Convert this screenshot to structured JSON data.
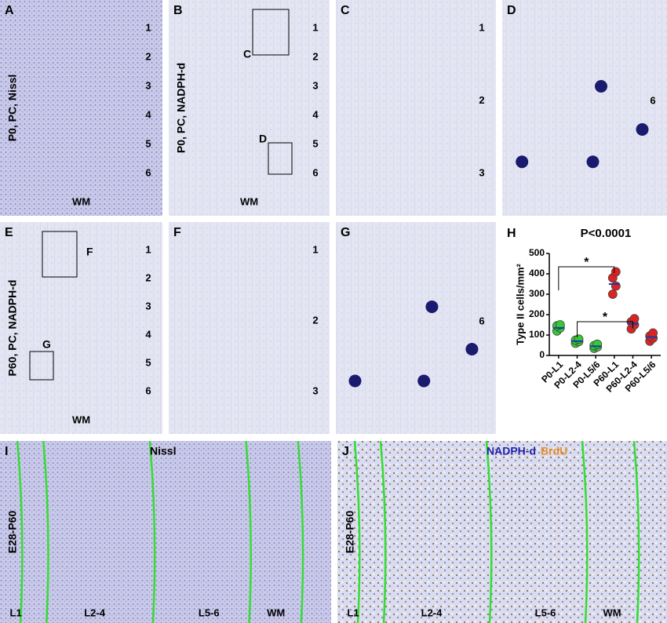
{
  "panels": [
    {
      "letter": "A",
      "side": "P0, PC, Nissl",
      "layers": [
        "1",
        "2",
        "3",
        "4",
        "5",
        "6"
      ],
      "wm": "WM"
    },
    {
      "letter": "B",
      "side": "P0, PC, NADPH-d",
      "layers": [
        "1",
        "2",
        "3",
        "4",
        "5",
        "6"
      ],
      "wm": "WM",
      "insets": [
        "C",
        "D"
      ]
    },
    {
      "letter": "C",
      "layers": [
        "1",
        "2",
        "3"
      ]
    },
    {
      "letter": "D",
      "layers": [
        "6"
      ]
    },
    {
      "letter": "E",
      "side": "P60, PC, NADPH-d",
      "layers": [
        "1",
        "2",
        "3",
        "4",
        "5",
        "6"
      ],
      "wm": "WM",
      "insets": [
        "F",
        "G"
      ]
    },
    {
      "letter": "F",
      "layers": [
        "1",
        "2",
        "3"
      ]
    },
    {
      "letter": "G",
      "layers": [
        "6"
      ]
    },
    {
      "letter": "I",
      "side": "E28-P60",
      "top": [
        "Nissl"
      ],
      "bottom": [
        "L1",
        "L2-4",
        "L5-6",
        "WM"
      ]
    },
    {
      "letter": "J",
      "side": "E28-P60",
      "top": [
        "NADPH-d",
        "BrdU"
      ],
      "bottom": [
        "L1",
        "L2-4",
        "L5-6",
        "WM"
      ]
    }
  ],
  "chart_data": {
    "type": "dot",
    "letter": "H",
    "title": "P<0.0001",
    "ylabel": "Type II cells/mm²",
    "categories": [
      "P0-L1",
      "P0-L2-4",
      "P0-L5/6",
      "P60-L1",
      "P60-L2-4",
      "P60-L5/6"
    ],
    "values": [
      135,
      70,
      45,
      350,
      155,
      90
    ],
    "points": [
      [
        120,
        135,
        145,
        150
      ],
      [
        60,
        68,
        75,
        80
      ],
      [
        35,
        42,
        48,
        55
      ],
      [
        300,
        340,
        380,
        410
      ],
      [
        130,
        150,
        165,
        180
      ],
      [
        70,
        85,
        95,
        110
      ]
    ],
    "colors": [
      "#33cc33",
      "#33cc33",
      "#33cc33",
      "#dd2222",
      "#dd2222",
      "#dd2222"
    ],
    "ylim": [
      0,
      500
    ],
    "yticks": [
      0,
      100,
      200,
      300,
      400,
      500
    ],
    "annotations": [
      "*",
      "*"
    ]
  }
}
